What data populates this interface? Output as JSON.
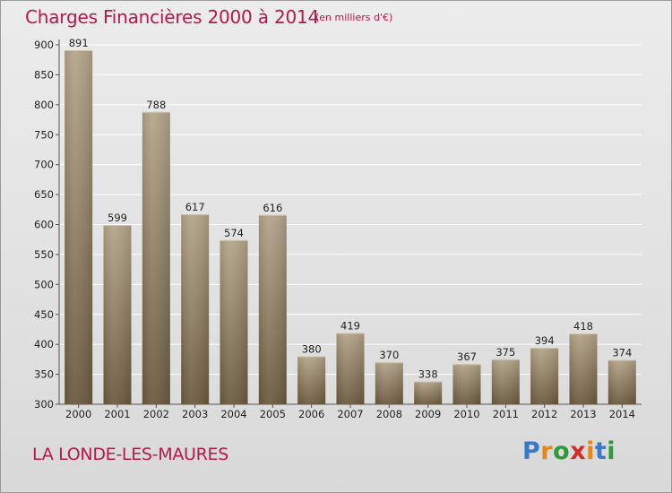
{
  "header": {
    "title": "Charges Financières 2000 à 2014",
    "unit_note": "(en milliers d'€)"
  },
  "footer": {
    "commune": "LA LONDE-LES-MAURES",
    "brand": "Proxiti"
  },
  "colors": {
    "title": "#b5174e",
    "bar_top": "#b4a58a",
    "bar_bottom": "#6b5a3f",
    "grid": "#ffffff",
    "logo_letters": [
      "#3a78c8",
      "#e8861a",
      "#2f9a3a",
      "#d62a2a",
      "#e8861a",
      "#3a78c8",
      "#2f9a3a"
    ]
  },
  "chart_data": {
    "type": "bar",
    "title": "Charges Financières 2000 à 2014",
    "subtitle": "(en milliers d'€)",
    "categories": [
      "2000",
      "2001",
      "2002",
      "2003",
      "2004",
      "2005",
      "2006",
      "2007",
      "2008",
      "2009",
      "2010",
      "2011",
      "2012",
      "2013",
      "2014"
    ],
    "values": [
      891,
      599,
      788,
      617,
      574,
      616,
      380,
      419,
      370,
      338,
      367,
      375,
      394,
      418,
      374
    ],
    "xlabel": "",
    "ylabel": "",
    "ylim": [
      300,
      900
    ],
    "yticks": [
      300,
      350,
      400,
      450,
      500,
      550,
      600,
      650,
      700,
      750,
      800,
      850,
      900
    ],
    "grid": true,
    "legend": "none"
  }
}
